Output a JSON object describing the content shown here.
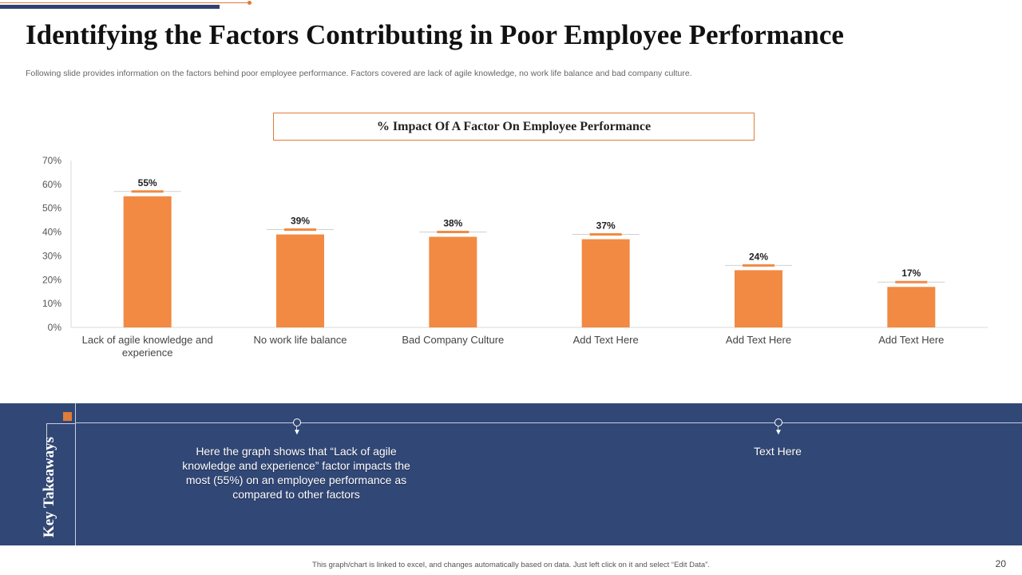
{
  "slide": {
    "title": "Identifying the Factors Contributing in Poor Employee Performance",
    "subtitle": "Following slide provides information on the factors behind poor employee performance. Factors covered are lack of agile knowledge, no work life balance and bad company culture.",
    "footer_note": "This graph/chart is linked to excel, and changes automatically based on data. Just left click on it and select “Edit Data”.",
    "page_number": "20"
  },
  "chart_data": {
    "type": "bar",
    "title": "% Impact Of  A Factor On Employee Performance",
    "categories": [
      [
        "Lack of agile knowledge and",
        "experience"
      ],
      [
        "No work life balance"
      ],
      [
        "Bad Company Culture"
      ],
      [
        "Add Text Here"
      ],
      [
        "Add Text Here"
      ],
      [
        "Add Text Here"
      ]
    ],
    "values": [
      55,
      39,
      38,
      37,
      24,
      17
    ],
    "data_labels": [
      "55%",
      "39%",
      "38%",
      "37%",
      "24%",
      "17%"
    ],
    "yticks": [
      "0%",
      "10%",
      "20%",
      "30%",
      "40%",
      "50%",
      "60%",
      "70%"
    ],
    "ylim": [
      0,
      70
    ],
    "xlabel": "",
    "ylabel": "",
    "grid": false,
    "bar_color": "#f28a43"
  },
  "takeaways": {
    "label": "Key Takeaways",
    "items": [
      "Here the graph shows that “Lack of agile knowledge and experience” factor impacts the most (55%) on an employee performance as compared to other factors",
      "Text Here"
    ]
  },
  "colors": {
    "accent": "#e07b39",
    "navy": "#314776"
  }
}
